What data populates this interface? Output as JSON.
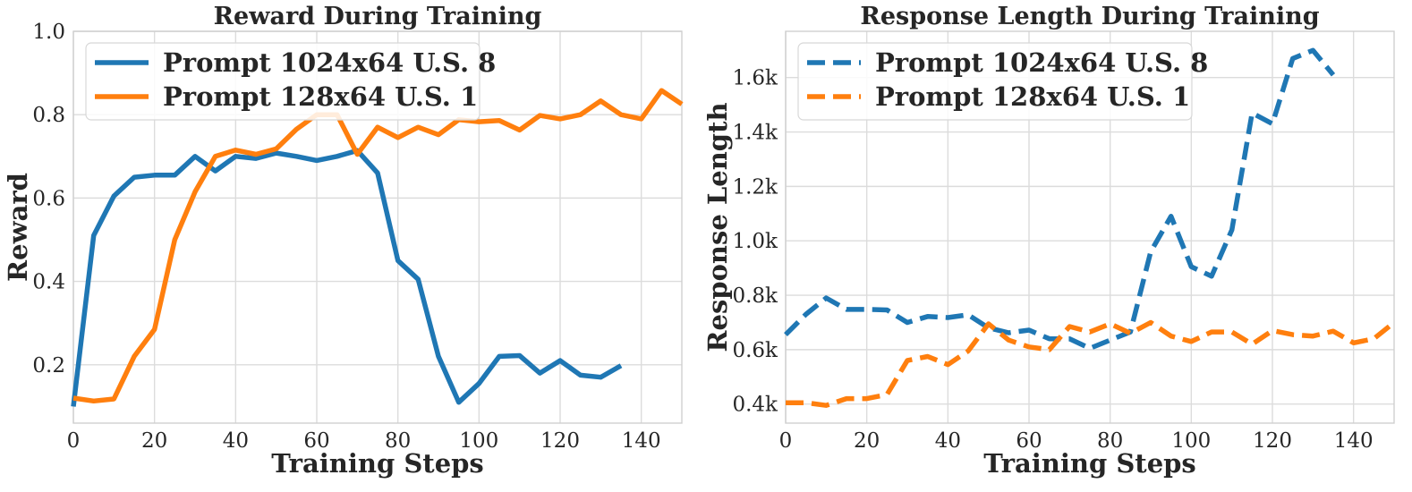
{
  "chart_data": [
    {
      "type": "line",
      "title": "Reward During Training",
      "xlabel": "Training Steps",
      "ylabel": "Reward",
      "xlim": [
        0,
        150
      ],
      "ylim": [
        0.06,
        1.0
      ],
      "xticks": [
        0,
        20,
        40,
        60,
        80,
        100,
        120,
        140
      ],
      "yticks": [
        0.2,
        0.4,
        0.6,
        0.8,
        1.0
      ],
      "ytick_labels": [
        "0.2",
        "0.4",
        "0.6",
        "0.8",
        "1.0"
      ],
      "grid": true,
      "legend": "top-left",
      "series": [
        {
          "name": "Prompt 1024x64 U.S. 8",
          "color": "#1f77b4",
          "dash": "solid",
          "x": [
            0,
            5,
            10,
            15,
            20,
            25,
            30,
            35,
            40,
            45,
            50,
            55,
            60,
            65,
            70,
            75,
            80,
            85,
            90,
            95,
            100,
            105,
            110,
            115,
            120,
            125,
            130,
            135
          ],
          "values": [
            0.1,
            0.51,
            0.605,
            0.65,
            0.655,
            0.655,
            0.7,
            0.665,
            0.7,
            0.695,
            0.708,
            0.7,
            0.69,
            0.7,
            0.714,
            0.66,
            0.45,
            0.405,
            0.22,
            0.11,
            0.155,
            0.22,
            0.222,
            0.18,
            0.21,
            0.175,
            0.17,
            0.198
          ]
        },
        {
          "name": "Prompt 128x64 U.S. 1",
          "color": "#ff7f0e",
          "dash": "solid",
          "x": [
            0,
            5,
            10,
            15,
            20,
            25,
            30,
            35,
            40,
            45,
            50,
            55,
            60,
            65,
            70,
            75,
            80,
            85,
            90,
            95,
            100,
            105,
            110,
            115,
            120,
            125,
            130,
            135,
            140,
            145,
            150
          ],
          "values": [
            0.12,
            0.113,
            0.118,
            0.22,
            0.285,
            0.5,
            0.615,
            0.7,
            0.715,
            0.705,
            0.718,
            0.765,
            0.8,
            0.8,
            0.705,
            0.77,
            0.745,
            0.77,
            0.752,
            0.788,
            0.783,
            0.786,
            0.763,
            0.798,
            0.79,
            0.8,
            0.833,
            0.8,
            0.79,
            0.858,
            0.825
          ]
        }
      ]
    },
    {
      "type": "line",
      "title": "Response Length During Training",
      "xlabel": "Training Steps",
      "ylabel": "Response Length",
      "xlim": [
        0,
        150
      ],
      "ylim": [
        330,
        1770
      ],
      "xticks": [
        0,
        20,
        40,
        60,
        80,
        100,
        120,
        140
      ],
      "yticks": [
        400,
        600,
        800,
        1000,
        1200,
        1400,
        1600
      ],
      "ytick_labels": [
        "0.4k",
        "0.6k",
        "0.8k",
        "1.0k",
        "1.2k",
        "1.4k",
        "1.6k"
      ],
      "grid": true,
      "legend": "top-left",
      "series": [
        {
          "name": "Prompt 1024x64 U.S. 8",
          "color": "#1f77b4",
          "dash": "dashed",
          "x": [
            0,
            5,
            10,
            15,
            20,
            25,
            30,
            35,
            40,
            45,
            50,
            55,
            60,
            65,
            70,
            75,
            80,
            85,
            90,
            95,
            100,
            105,
            110,
            115,
            120,
            125,
            130,
            135
          ],
          "values": [
            655,
            730,
            790,
            748,
            748,
            746,
            700,
            722,
            718,
            728,
            680,
            662,
            672,
            640,
            640,
            605,
            635,
            665,
            960,
            1090,
            905,
            870,
            1040,
            1470,
            1430,
            1670,
            1700,
            1610
          ]
        },
        {
          "name": "Prompt 128x64 U.S. 1",
          "color": "#ff7f0e",
          "dash": "dashed",
          "x": [
            0,
            5,
            10,
            15,
            20,
            25,
            30,
            35,
            40,
            45,
            50,
            55,
            60,
            65,
            70,
            75,
            80,
            85,
            90,
            95,
            100,
            105,
            110,
            115,
            120,
            125,
            130,
            135,
            140,
            145,
            150
          ],
          "values": [
            405,
            405,
            395,
            420,
            420,
            435,
            560,
            575,
            545,
            595,
            695,
            635,
            610,
            600,
            685,
            665,
            695,
            660,
            700,
            650,
            630,
            665,
            665,
            620,
            670,
            655,
            650,
            668,
            625,
            640,
            700
          ]
        }
      ]
    }
  ]
}
